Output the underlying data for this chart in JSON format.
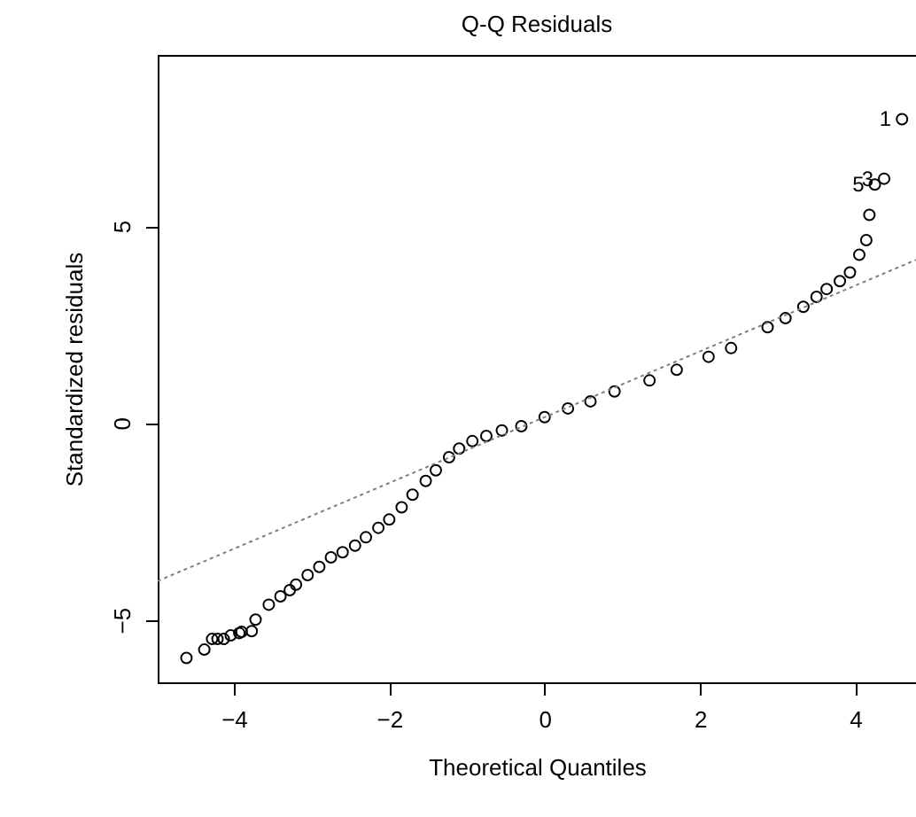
{
  "chart_data": {
    "type": "scatter",
    "title": "Q-Q Residuals",
    "xlabel": "Theoretical Quantiles",
    "ylabel": "Standardized residuals",
    "xlim": [
      -4.98,
      4.78
    ],
    "ylim": [
      -6.58,
      9.34
    ],
    "xticks": [
      -4,
      -2,
      0,
      2,
      4
    ],
    "yticks": [
      -5,
      0,
      5
    ],
    "grid": false,
    "marker": "circle",
    "series": [
      {
        "color": "#000000",
        "x": [
          -4.61,
          -4.38,
          -4.28,
          -4.21,
          -4.13,
          -4.04,
          -3.93,
          -3.9,
          -3.77,
          -3.72,
          -3.55,
          -3.4,
          -3.28,
          -3.2,
          -3.05,
          -2.9,
          -2.75,
          -2.6,
          -2.44,
          -2.3,
          -2.14,
          -2.0,
          -1.84,
          -1.7,
          -1.53,
          -1.4,
          -1.23,
          -1.1,
          -0.93,
          -0.75,
          -0.55,
          -0.3,
          0,
          0.3,
          0.59,
          0.9,
          1.35,
          1.7,
          2.11,
          2.4,
          2.87,
          3.1,
          3.33,
          3.5,
          3.63,
          3.8,
          3.93,
          4.05,
          4.14,
          4.18,
          4.25,
          4.37,
          4.6
        ],
        "values": [
          -5.96,
          -5.75,
          -5.48,
          -5.48,
          -5.48,
          -5.39,
          -5.33,
          -5.3,
          -5.28,
          -4.99,
          -4.61,
          -4.4,
          -4.24,
          -4.1,
          -3.86,
          -3.65,
          -3.41,
          -3.28,
          -3.11,
          -2.9,
          -2.66,
          -2.45,
          -2.14,
          -1.82,
          -1.47,
          -1.2,
          -0.87,
          -0.65,
          -0.46,
          -0.33,
          -0.19,
          -0.08,
          0.15,
          0.37,
          0.55,
          0.8,
          1.08,
          1.35,
          1.68,
          1.9,
          2.43,
          2.66,
          2.95,
          3.2,
          3.4,
          3.6,
          3.82,
          4.27,
          4.64,
          5.28,
          6.05,
          6.2,
          7.71
        ]
      },
      {
        "type": "line",
        "color": "#808080",
        "line_style": "dotted",
        "marker": "none",
        "x": [
          -4.98,
          4.78
        ],
        "values": [
          -4.01,
          4.14
        ]
      }
    ],
    "annotations": [
      {
        "text": "1",
        "x": 4.6,
        "y": 7.71
      },
      {
        "text": "3",
        "x": 4.37,
        "y": 6.2
      },
      {
        "text": "5",
        "x": 4.25,
        "y": 6.05
      }
    ]
  }
}
